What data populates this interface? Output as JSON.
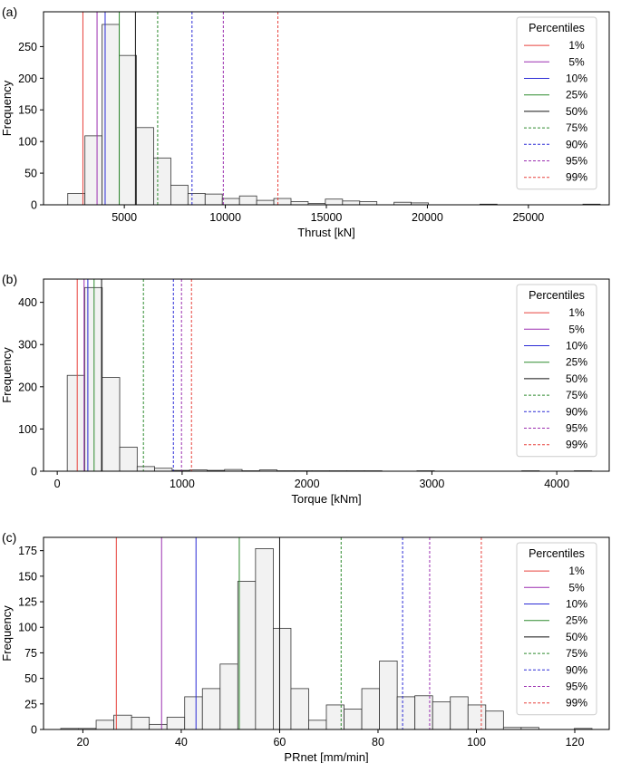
{
  "panel_labels": [
    "(a)",
    "(b)",
    "(c)"
  ],
  "chart_data": [
    {
      "type": "bar",
      "subtype": "histogram",
      "xlabel": "Thrust [kN]",
      "ylabel": "Frequency",
      "xlim": [
        1000,
        29000
      ],
      "ylim": [
        0,
        305
      ],
      "xticks": [
        5000,
        10000,
        15000,
        20000,
        25000
      ],
      "xtick_labels": [
        "5000",
        "10000",
        "15000",
        "20000",
        "25000"
      ],
      "yticks": [
        0,
        50,
        100,
        150,
        200,
        250
      ],
      "ytick_labels": [
        "0",
        "50",
        "100",
        "150",
        "200",
        "250"
      ],
      "bin_start": 2200,
      "bin_width": 850,
      "values": [
        18,
        109,
        285,
        236,
        122,
        74,
        31,
        18,
        17,
        10,
        14,
        7,
        10,
        5,
        2,
        9,
        6,
        5,
        0,
        4,
        3,
        0,
        0,
        0,
        1,
        0,
        0,
        0,
        0,
        0,
        1
      ],
      "legend_title": "Percentiles",
      "legend_position": "top-right",
      "percentiles": [
        {
          "label": "1%",
          "value": 2950,
          "color": "#e8413c",
          "dashed": false
        },
        {
          "label": "5%",
          "value": 3650,
          "color": "#9b2fb0",
          "dashed": false
        },
        {
          "label": "10%",
          "value": 4050,
          "color": "#2b2bd6",
          "dashed": false
        },
        {
          "label": "25%",
          "value": 4750,
          "color": "#2e8b2e",
          "dashed": false
        },
        {
          "label": "50%",
          "value": 5550,
          "color": "#111111",
          "dashed": false
        },
        {
          "label": "75%",
          "value": 6650,
          "color": "#2e8b2e",
          "dashed": true
        },
        {
          "label": "90%",
          "value": 8350,
          "color": "#2b2bd6",
          "dashed": true
        },
        {
          "label": "95%",
          "value": 9900,
          "color": "#9b2fb0",
          "dashed": true
        },
        {
          "label": "99%",
          "value": 12600,
          "color": "#e8413c",
          "dashed": true
        }
      ]
    },
    {
      "type": "bar",
      "subtype": "histogram",
      "xlabel": "Torque [kNm]",
      "ylabel": "Frequency",
      "xlim": [
        -110,
        4420
      ],
      "ylim": [
        0,
        455
      ],
      "xticks": [
        0,
        1000,
        2000,
        3000,
        4000
      ],
      "xtick_labels": [
        "0",
        "1000",
        "2000",
        "3000",
        "4000"
      ],
      "yticks": [
        0,
        100,
        200,
        300,
        400
      ],
      "ytick_labels": [
        "0",
        "100",
        "200",
        "300",
        "400"
      ],
      "bin_start": 80,
      "bin_width": 140,
      "values": [
        227,
        435,
        222,
        57,
        11,
        7,
        2,
        3,
        2,
        4,
        1,
        3,
        1,
        1,
        1,
        1,
        1,
        1,
        0,
        0,
        1,
        0,
        0,
        0,
        0,
        0,
        1,
        0,
        0,
        1
      ],
      "legend_title": "Percentiles",
      "legend_position": "top-right",
      "percentiles": [
        {
          "label": "1%",
          "value": 160,
          "color": "#e8413c",
          "dashed": false
        },
        {
          "label": "5%",
          "value": 215,
          "color": "#9b2fb0",
          "dashed": false
        },
        {
          "label": "10%",
          "value": 245,
          "color": "#2b2bd6",
          "dashed": false
        },
        {
          "label": "25%",
          "value": 295,
          "color": "#2e8b2e",
          "dashed": false
        },
        {
          "label": "50%",
          "value": 355,
          "color": "#111111",
          "dashed": false
        },
        {
          "label": "75%",
          "value": 690,
          "color": "#2e8b2e",
          "dashed": true
        },
        {
          "label": "90%",
          "value": 930,
          "color": "#2b2bd6",
          "dashed": true
        },
        {
          "label": "95%",
          "value": 995,
          "color": "#9b2fb0",
          "dashed": true
        },
        {
          "label": "99%",
          "value": 1075,
          "color": "#e8413c",
          "dashed": true
        }
      ]
    },
    {
      "type": "bar",
      "subtype": "histogram",
      "xlabel": "PRnet [mm/min]",
      "ylabel": "Frequency",
      "xlim": [
        12,
        127
      ],
      "ylim": [
        0,
        188
      ],
      "xticks": [
        20,
        40,
        60,
        80,
        100,
        120
      ],
      "xtick_labels": [
        "20",
        "40",
        "60",
        "80",
        "100",
        "120"
      ],
      "yticks": [
        0,
        25,
        50,
        75,
        100,
        125,
        150,
        175
      ],
      "ytick_labels": [
        "0",
        "25",
        "50",
        "75",
        "100",
        "125",
        "150",
        "175"
      ],
      "bin_start": 15.5,
      "bin_width": 3.6,
      "values": [
        1,
        1,
        9,
        14,
        12,
        5,
        12,
        32,
        40,
        64,
        145,
        177,
        99,
        40,
        9,
        24,
        20,
        40,
        67,
        32,
        33,
        27,
        32,
        24,
        18,
        2,
        2,
        0,
        0,
        1
      ],
      "legend_title": "Percentiles",
      "legend_position": "top-right",
      "percentiles": [
        {
          "label": "1%",
          "value": 26.8,
          "color": "#e8413c",
          "dashed": false
        },
        {
          "label": "5%",
          "value": 36.0,
          "color": "#9b2fb0",
          "dashed": false
        },
        {
          "label": "10%",
          "value": 43.0,
          "color": "#2b2bd6",
          "dashed": false
        },
        {
          "label": "25%",
          "value": 51.8,
          "color": "#2e8b2e",
          "dashed": false
        },
        {
          "label": "50%",
          "value": 60.0,
          "color": "#111111",
          "dashed": false
        },
        {
          "label": "75%",
          "value": 72.5,
          "color": "#2e8b2e",
          "dashed": true
        },
        {
          "label": "90%",
          "value": 85.0,
          "color": "#2b2bd6",
          "dashed": true
        },
        {
          "label": "95%",
          "value": 90.5,
          "color": "#9b2fb0",
          "dashed": true
        },
        {
          "label": "99%",
          "value": 101.0,
          "color": "#e8413c",
          "dashed": true
        }
      ]
    }
  ]
}
